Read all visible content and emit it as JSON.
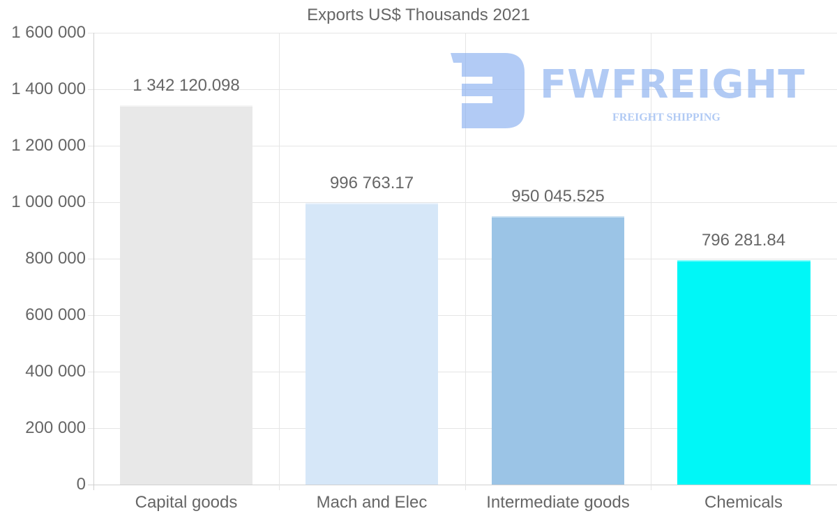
{
  "chart_data": {
    "type": "bar",
    "title": "Exports US$ Thousands 2021",
    "xlabel": "",
    "ylabel": "",
    "categories": [
      "Capital goods",
      "Mach and Elec",
      "Intermediate goods",
      "Chemicals"
    ],
    "values": [
      1342120.098,
      996763.17,
      950045.525,
      796281.84
    ],
    "value_labels": [
      "1 342 120.098",
      "996 763.17",
      "950 045.525",
      "796 281.84"
    ],
    "colors": [
      "#e8e8e8",
      "#d6e7f8",
      "#9bc4e6",
      "#00f7f7"
    ],
    "ylim": [
      0,
      1600000
    ],
    "yticks": [
      0,
      200000,
      400000,
      600000,
      800000,
      1000000,
      1200000,
      1400000,
      1600000
    ],
    "ytick_labels": [
      "0",
      "200 000",
      "400 000",
      "600 000",
      "800 000",
      "1 000 000",
      "1 200 000",
      "1 400 000",
      "1 600 000"
    ],
    "grid": true,
    "legend": "none"
  },
  "watermark": {
    "brand": "FWFREIGHT",
    "tagline": "FREIGHT SHIPPING",
    "color": "#7ea8ee"
  }
}
